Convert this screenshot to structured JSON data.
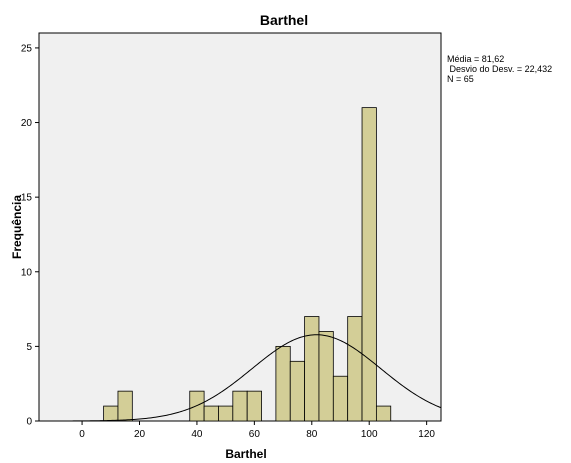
{
  "chart_data": {
    "type": "bar",
    "title": "Barthel",
    "xlabel": "Barthel",
    "ylabel": "Frequência",
    "xlim": [
      -15,
      125
    ],
    "ylim": [
      0,
      26
    ],
    "x_ticks": [
      0,
      20,
      40,
      60,
      80,
      100,
      120
    ],
    "y_ticks": [
      0,
      5,
      10,
      15,
      20,
      25
    ],
    "bin_width": 5,
    "bins": [
      {
        "start": 7.5,
        "end": 12.5,
        "count": 1
      },
      {
        "start": 12.5,
        "end": 17.5,
        "count": 2
      },
      {
        "start": 37.5,
        "end": 42.5,
        "count": 2
      },
      {
        "start": 42.5,
        "end": 47.5,
        "count": 1
      },
      {
        "start": 47.5,
        "end": 52.5,
        "count": 1
      },
      {
        "start": 52.5,
        "end": 57.5,
        "count": 2
      },
      {
        "start": 57.5,
        "end": 62.5,
        "count": 2
      },
      {
        "start": 67.5,
        "end": 72.5,
        "count": 5
      },
      {
        "start": 72.5,
        "end": 77.5,
        "count": 4
      },
      {
        "start": 77.5,
        "end": 82.5,
        "count": 7
      },
      {
        "start": 82.5,
        "end": 87.5,
        "count": 6
      },
      {
        "start": 87.5,
        "end": 92.5,
        "count": 3
      },
      {
        "start": 92.5,
        "end": 97.5,
        "count": 7
      },
      {
        "start": 97.5,
        "end": 102.5,
        "count": 21
      },
      {
        "start": 102.5,
        "end": 107.5,
        "count": 1
      }
    ],
    "normal_curve": {
      "mean": 81.62,
      "sd": 22.432,
      "n": 65
    },
    "stats_box": {
      "mean_label": "Média = 81,62",
      "sd_label": " Desvio do Desv. = 22,432",
      "n_label": "N = 65"
    },
    "grid": false,
    "colors": {
      "bar_fill": "#d3ce97",
      "bar_stroke": "#000000",
      "plot_background": "#f0f0f0",
      "curve": "#000000"
    }
  }
}
